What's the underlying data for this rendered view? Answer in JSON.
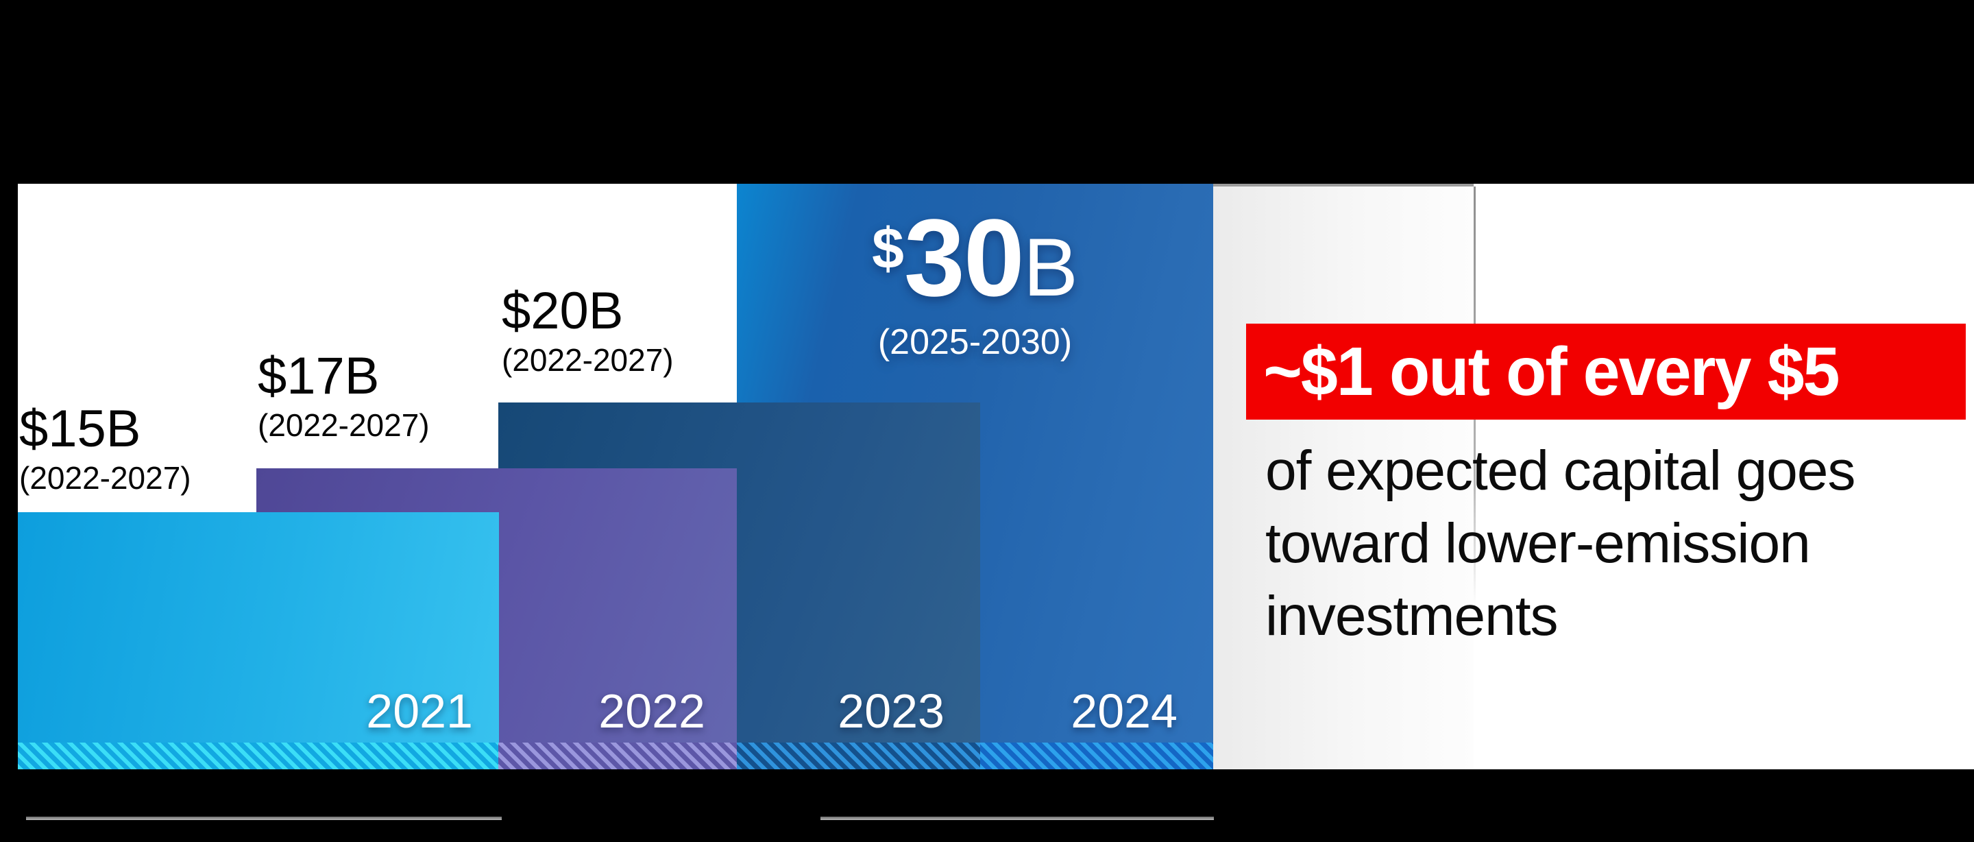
{
  "chart_data": {
    "type": "bar",
    "title": "",
    "categories": [
      "2021",
      "2022",
      "2023",
      "2024"
    ],
    "values": [
      15,
      17,
      20,
      30
    ],
    "unit": "$B",
    "bars": [
      {
        "year": "2021",
        "amount": "$15B",
        "period": "(2022-2027)"
      },
      {
        "year": "2022",
        "amount": "$17B",
        "period": "(2022-2027)"
      },
      {
        "year": "2023",
        "amount": "$20B",
        "period": "(2022-2027)"
      },
      {
        "year": "2024",
        "amount_prefix": "$",
        "amount_number": "30",
        "amount_suffix": "B",
        "period": "(2025-2030)"
      }
    ],
    "legend": "none",
    "grid": "off"
  },
  "callout": {
    "highlight": "~$1 out of every $5",
    "lines": [
      "of expected capital goes",
      "toward lower-emission",
      "investments"
    ]
  },
  "colors": {
    "highlight_bg": "#f20000",
    "highlight_text": "#ffffff",
    "bar_2021": "#22b1e7",
    "bar_2022": "#5b55a6",
    "bar_2023": "#24568a",
    "bar_2024": "#2163ac",
    "hatch_cyan": "#3bdef7",
    "background": "#000000",
    "panel_white": "#ffffff"
  }
}
